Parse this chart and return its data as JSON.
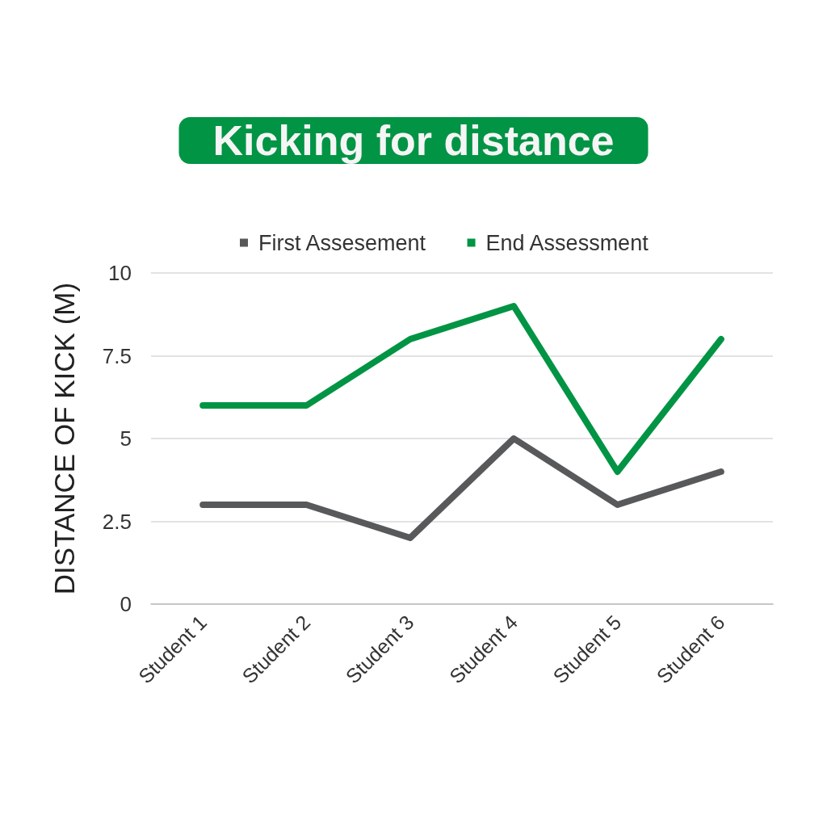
{
  "chart_data": {
    "type": "line",
    "title": "Kicking for distance",
    "ylabel": "DISTANCE OF KICK (M)",
    "categories": [
      "Student 1",
      "Student 2",
      "Student 3",
      "Student 4",
      "Student 5",
      "Student 6"
    ],
    "series": [
      {
        "name": "First Assesement",
        "color": "#58595b",
        "values": [
          3,
          3,
          2,
          5,
          3,
          4
        ]
      },
      {
        "name": "End Assessment",
        "color": "#009444",
        "values": [
          6,
          6,
          8,
          9,
          4,
          8
        ]
      }
    ],
    "ylim": [
      0,
      10
    ],
    "yticks": [
      0,
      2.5,
      5,
      7.5,
      10
    ],
    "grid": "y",
    "legend": "top",
    "marker": "none",
    "line_style": "solid"
  }
}
